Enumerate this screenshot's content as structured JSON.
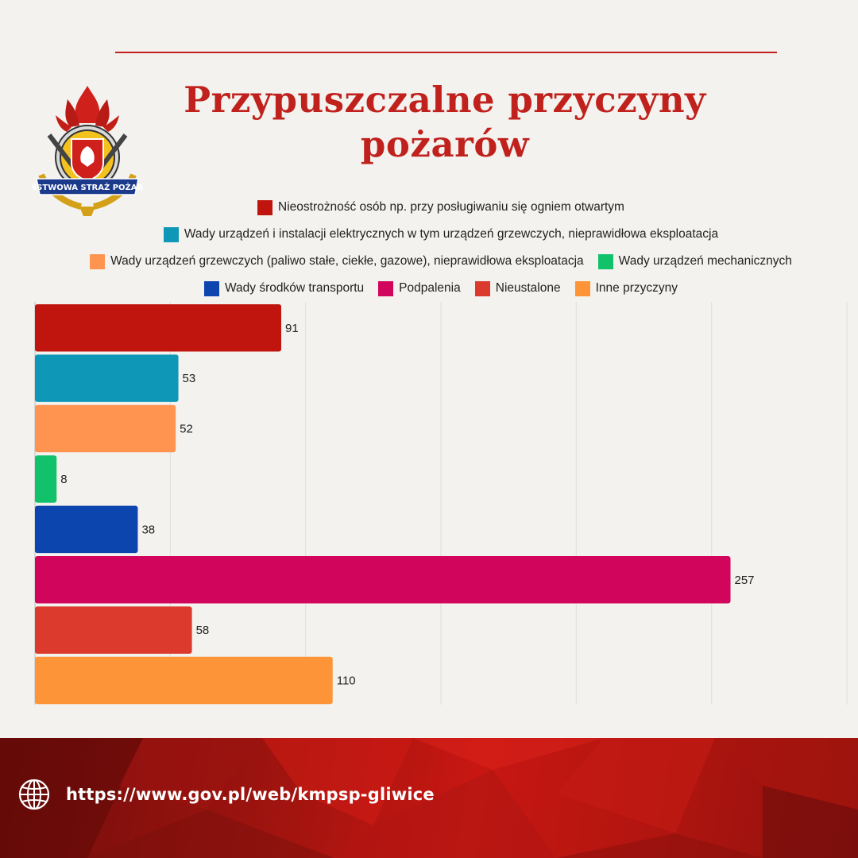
{
  "header": {
    "title_line1": "Przypuszczalne przyczyny",
    "title_line2": "pożarów",
    "logo_text": "PAŃSTWOWA STRAŻ POŻARNA"
  },
  "colors": {
    "accent": "#c0211d",
    "background": "#f3f2ee"
  },
  "chart_data": {
    "type": "bar",
    "orientation": "horizontal",
    "title": "Przypuszczalne przyczyny pożarów",
    "categories": [
      "Nieostrożność osób np. przy posługiwaniu się ogniem otwartym",
      "Wady urządzeń i instalacji elektrycznych w tym urządzeń grzewczych, nieprawidłowa eksploatacja",
      "Wady urządzeń grzewczych (paliwo stałe, ciekłe, gazowe), nieprawidłowa eksploatacja",
      "Wady urządzeń mechanicznych",
      "Wady środków transportu",
      "Podpalenia",
      "Nieustalone",
      "Inne przyczyny"
    ],
    "values": [
      91,
      53,
      52,
      8,
      38,
      257,
      58,
      110
    ],
    "colors": [
      "#c0150f",
      "#0e97b6",
      "#ff9451",
      "#11c26a",
      "#0b45ad",
      "#d2055c",
      "#dc3a2c",
      "#fd9437"
    ],
    "xlim": [
      0,
      300
    ],
    "grid": true,
    "legend_placement": "top",
    "legend_rows": [
      [
        0
      ],
      [
        1
      ],
      [
        2,
        3
      ],
      [
        4,
        5,
        6,
        7
      ]
    ],
    "xlabel": "",
    "ylabel": ""
  },
  "footer": {
    "url": "https://www.gov.pl/web/kmpsp-gliwice",
    "icon": "globe-icon"
  }
}
